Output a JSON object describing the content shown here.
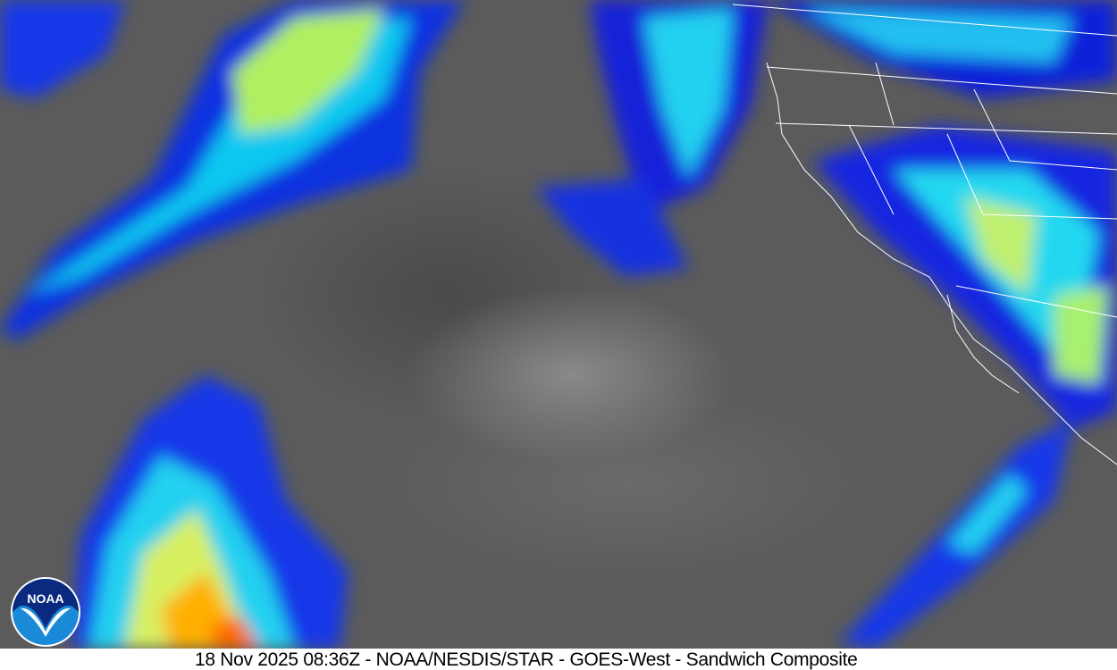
{
  "caption": "18 Nov 2025 08:36Z - NOAA/NESDIS/STAR - GOES-West - Sandwich Composite",
  "logo": {
    "text": "NOAA",
    "icon": "noaa-seagull-logo"
  },
  "colors": {
    "background_gray": "#5b5b5b",
    "cold_cloud_blue": "#0a1ee0",
    "cyan": "#00e6ff",
    "yellow_green": "#c8ff3c",
    "orange": "#ff9a00",
    "borders": "#ffffff"
  }
}
